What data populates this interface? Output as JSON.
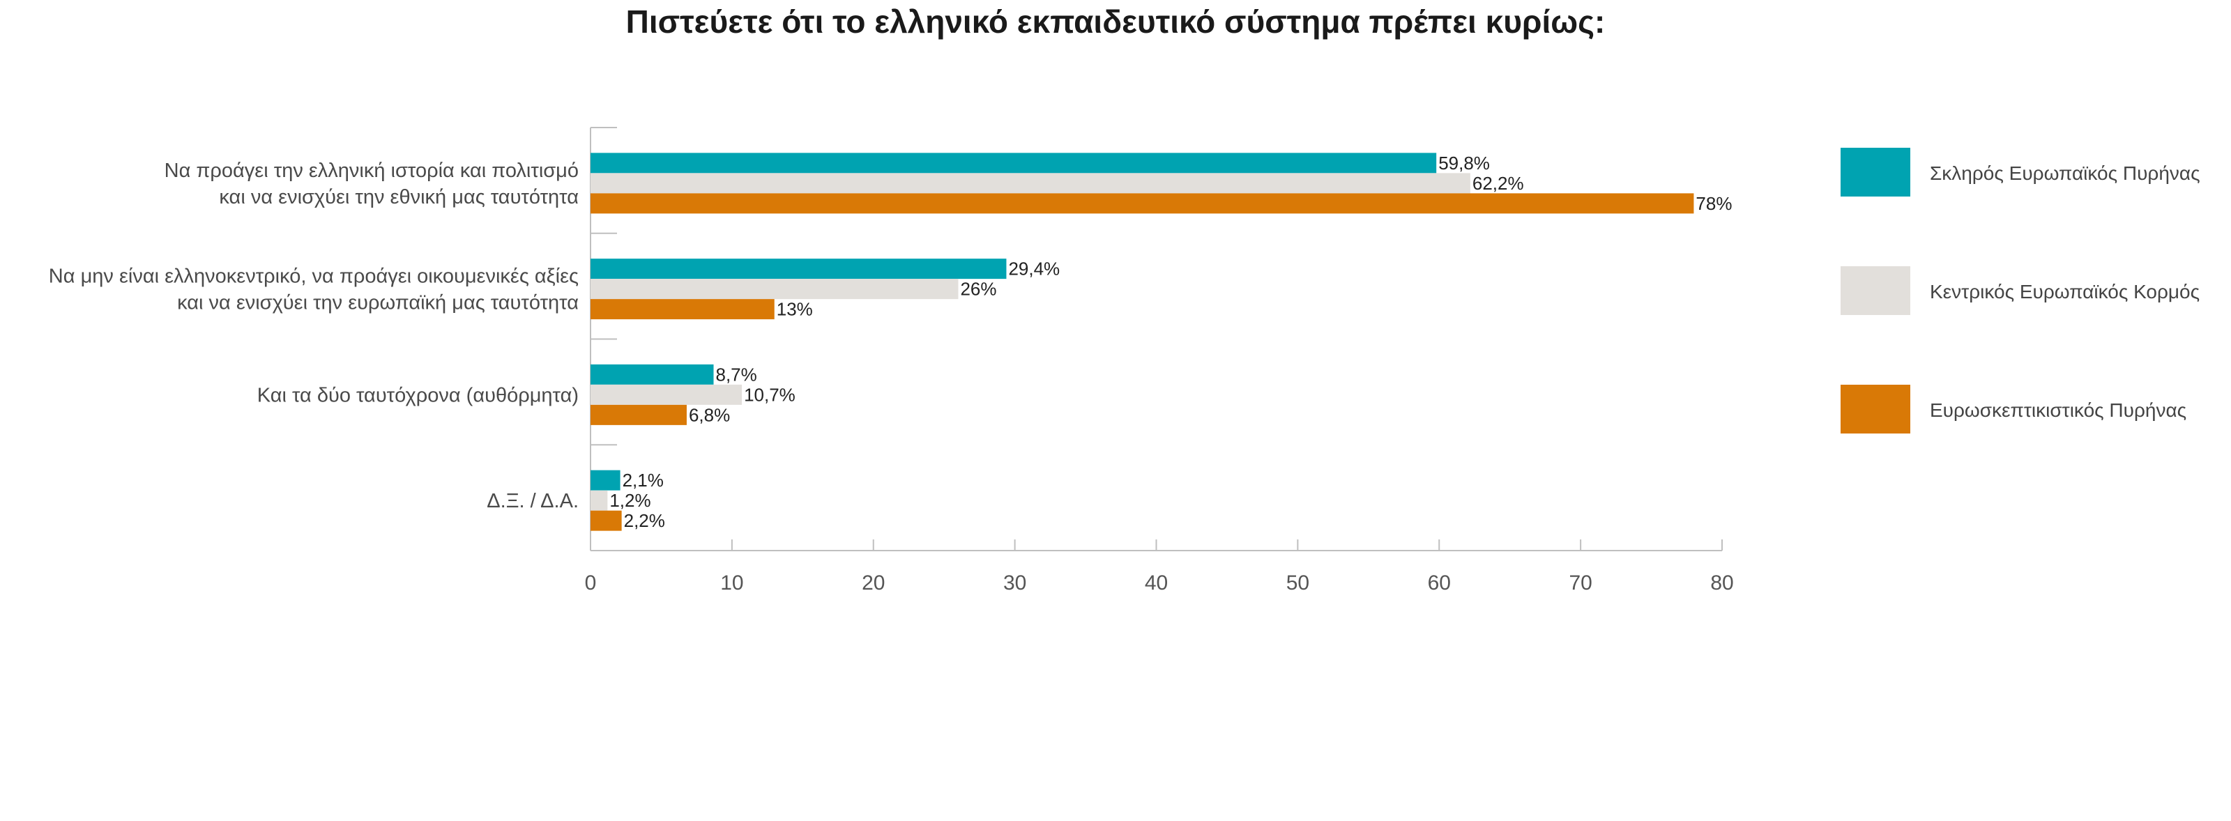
{
  "colors": {
    "series_1": "#00a3b1",
    "series_2": "#e2dfdb",
    "series_3": "#d97906",
    "axis": "#bfbfbf",
    "text": "#4a4a4a"
  },
  "chart_data": {
    "type": "bar",
    "orientation": "horizontal",
    "title": "Πιστεύετε ότι το ελληνικό εκπαιδευτικό σύστημα πρέπει κυρίως:",
    "categories": [
      [
        "Να προάγει την ελληνική ιστορία και πολιτισμό",
        "και να ενισχύει την εθνική μας ταυτότητα"
      ],
      [
        "Να μην είναι ελληνοκεντρικό, να προάγει οικουμενικές αξίες",
        "και να ενισχύει την ευρωπαϊκή μας ταυτότητα"
      ],
      [
        "Και τα δύο ταυτόχρονα (αυθόρμητα)"
      ],
      [
        "Δ.Ξ. / Δ.Α."
      ]
    ],
    "series": [
      {
        "name": "Σκληρός Ευρωπαϊκός Πυρήνας",
        "values": [
          59.8,
          29.4,
          8.7,
          2.1
        ],
        "labels": [
          "59,8%",
          "29,4%",
          "8,7%",
          "2,1%"
        ]
      },
      {
        "name": "Κεντρικός Ευρωπαϊκός Κορμός",
        "values": [
          62.2,
          26,
          10.7,
          1.2
        ],
        "labels": [
          "62,2%",
          "26%",
          "10,7%",
          "1,2%"
        ]
      },
      {
        "name": "Ευρωσκεπτικιστικός Πυρήνας",
        "values": [
          78,
          13,
          6.8,
          2.2
        ],
        "labels": [
          "78%",
          "13%",
          "6,8%",
          "2,2%"
        ]
      }
    ],
    "xlim": [
      0,
      80
    ],
    "xticks": [
      0,
      10,
      20,
      30,
      40,
      50,
      60,
      70,
      80
    ],
    "grid": false,
    "legend_position": "right"
  }
}
